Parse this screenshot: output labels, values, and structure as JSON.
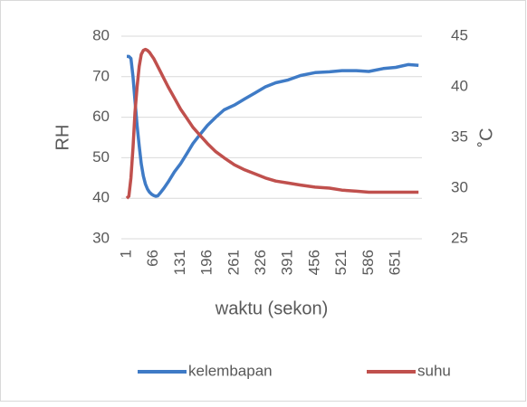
{
  "chart_data": {
    "type": "line",
    "x_label": "waktu (sekon)",
    "y_label": "RH",
    "y2_label": "˚C",
    "x": [
      1,
      6,
      11,
      16,
      21,
      26,
      31,
      36,
      41,
      46,
      51,
      56,
      61,
      66,
      71,
      76,
      81,
      91,
      101,
      116,
      131,
      146,
      161,
      176,
      196,
      216,
      236,
      261,
      286,
      311,
      336,
      361,
      391,
      421,
      456,
      491,
      521,
      556,
      586,
      621,
      651,
      681,
      706
    ],
    "series": [
      {
        "name": "kelembapan",
        "color": "#3f7bc6",
        "axis": "y",
        "values": [
          75,
          75,
          74.5,
          70,
          64,
          58,
          53,
          48.5,
          45.5,
          43.5,
          42.3,
          41.5,
          41,
          40.7,
          40.5,
          40.6,
          41.2,
          42.5,
          44,
          46.5,
          48.5,
          51,
          53.5,
          55.5,
          58,
          60,
          61.8,
          63,
          64.5,
          66,
          67.5,
          68.5,
          69.2,
          70.3,
          71,
          71.2,
          71.5,
          71.5,
          71.3,
          72,
          72.3,
          73,
          72.8
        ]
      },
      {
        "name": "suhu",
        "color": "#c0504d",
        "axis": "y2",
        "values": [
          29,
          29.2,
          31,
          34,
          37.5,
          40,
          42,
          43.2,
          43.6,
          43.7,
          43.6,
          43.4,
          43.1,
          42.8,
          42.4,
          42,
          41.6,
          40.8,
          40,
          38.9,
          37.8,
          36.9,
          36,
          35.3,
          34.4,
          33.6,
          33,
          32.3,
          31.8,
          31.4,
          31,
          30.7,
          30.5,
          30.3,
          30.1,
          30,
          29.8,
          29.7,
          29.6,
          29.6,
          29.6,
          29.6,
          29.6
        ]
      }
    ],
    "xlim": [
      1,
      710
    ],
    "xticks": [
      1,
      66,
      131,
      196,
      261,
      326,
      391,
      456,
      521,
      586,
      651
    ],
    "ylim": [
      30,
      80
    ],
    "yticks": [
      30,
      40,
      50,
      60,
      70,
      80
    ],
    "y2lim": [
      25,
      45
    ],
    "y2ticks": [
      25,
      30,
      35,
      40,
      45
    ],
    "grid": true,
    "legend": "bottom"
  }
}
